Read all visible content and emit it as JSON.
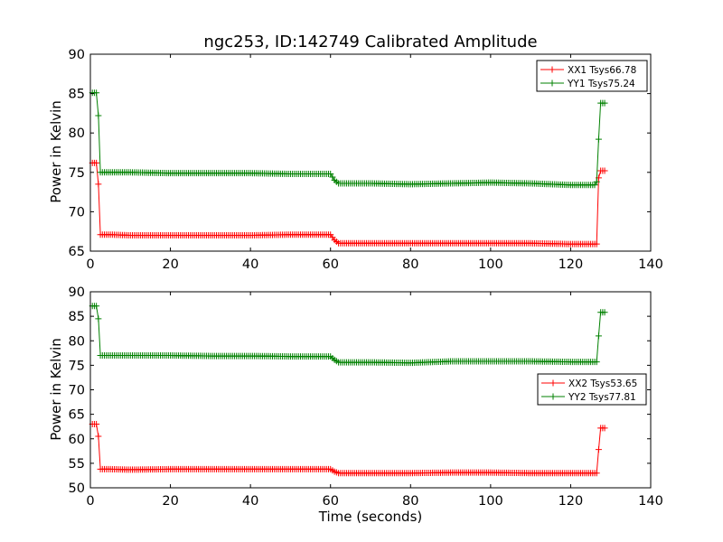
{
  "chart_data": [
    {
      "type": "line",
      "title": "ngc253, ID:142749 Calibrated Amplitude",
      "xlabel": "",
      "ylabel": "Power in Kelvin",
      "xlim": [
        0,
        140
      ],
      "ylim": [
        65,
        90
      ],
      "xticks": [
        0,
        20,
        40,
        60,
        80,
        100,
        120,
        140
      ],
      "yticks": [
        65,
        70,
        75,
        80,
        85,
        90
      ],
      "legend_position": "top-right",
      "series": [
        {
          "name": "XX1 Tsys66.78",
          "color": "#ff0000",
          "marker": "+",
          "x": [
            0.5,
            1,
            1.5,
            2,
            2.5,
            3,
            5,
            10,
            20,
            30,
            40,
            50,
            60,
            61,
            62,
            70,
            80,
            90,
            100,
            110,
            120,
            126,
            126.5,
            127,
            127.5,
            128,
            128.5
          ],
          "y": [
            76.2,
            76.2,
            76.2,
            73.5,
            67.1,
            67.1,
            67.1,
            67.0,
            67.0,
            67.0,
            67.0,
            67.1,
            67.1,
            66.4,
            66.0,
            66.0,
            66.0,
            66.0,
            66.0,
            66.0,
            65.9,
            65.9,
            65.9,
            74.3,
            75.2,
            75.2,
            75.2
          ]
        },
        {
          "name": "YY1 Tsys75.24",
          "color": "#008000",
          "marker": "+",
          "x": [
            0.5,
            1,
            1.5,
            2,
            2.5,
            3,
            5,
            10,
            20,
            30,
            40,
            50,
            60,
            61,
            62,
            70,
            80,
            90,
            100,
            110,
            120,
            126,
            126.5,
            127,
            127.5,
            128,
            128.5
          ],
          "y": [
            85.1,
            85.1,
            85.1,
            82.2,
            75.0,
            75.0,
            75.0,
            75.0,
            74.9,
            74.9,
            74.9,
            74.8,
            74.8,
            74.0,
            73.6,
            73.6,
            73.5,
            73.6,
            73.7,
            73.6,
            73.4,
            73.4,
            73.8,
            79.2,
            83.8,
            83.8,
            83.8
          ]
        }
      ]
    },
    {
      "type": "line",
      "title": "",
      "xlabel": "Time (seconds)",
      "ylabel": "Power in Kelvin",
      "xlim": [
        0,
        140
      ],
      "ylim": [
        50,
        90
      ],
      "xticks": [
        0,
        20,
        40,
        60,
        80,
        100,
        120,
        140
      ],
      "yticks": [
        50,
        55,
        60,
        65,
        70,
        75,
        80,
        85,
        90
      ],
      "legend_position": "center-right",
      "series": [
        {
          "name": "XX2 Tsys53.65",
          "color": "#ff0000",
          "marker": "+",
          "x": [
            0.5,
            1,
            1.5,
            2,
            2.5,
            3,
            5,
            10,
            20,
            30,
            40,
            50,
            60,
            61,
            62,
            70,
            80,
            90,
            100,
            110,
            120,
            126,
            126.5,
            127,
            127.5,
            128,
            128.5
          ],
          "y": [
            63.0,
            63.0,
            63.0,
            60.5,
            53.8,
            53.8,
            53.8,
            53.7,
            53.8,
            53.8,
            53.8,
            53.8,
            53.8,
            53.3,
            53.0,
            53.0,
            53.0,
            53.1,
            53.1,
            53.0,
            53.0,
            53.0,
            53.0,
            57.8,
            62.2,
            62.2,
            62.2
          ]
        },
        {
          "name": "YY2 Tsys77.81",
          "color": "#008000",
          "marker": "+",
          "x": [
            0.5,
            1,
            1.5,
            2,
            2.5,
            3,
            5,
            10,
            20,
            30,
            40,
            50,
            60,
            61,
            62,
            70,
            80,
            90,
            100,
            110,
            120,
            126,
            126.5,
            127,
            127.5,
            128,
            128.5
          ],
          "y": [
            87.1,
            87.1,
            87.1,
            84.5,
            77.0,
            77.0,
            77.0,
            77.0,
            77.0,
            76.9,
            76.9,
            76.8,
            76.8,
            76.1,
            75.6,
            75.6,
            75.5,
            75.8,
            75.8,
            75.8,
            75.7,
            75.7,
            75.7,
            81.0,
            85.8,
            85.8,
            85.8
          ]
        }
      ]
    }
  ]
}
